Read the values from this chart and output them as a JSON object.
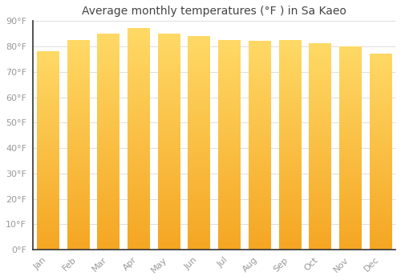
{
  "title": "Average monthly temperatures (°F ) in Sa Kaeo",
  "months": [
    "Jan",
    "Feb",
    "Mar",
    "Apr",
    "May",
    "Jun",
    "Jul",
    "Aug",
    "Sep",
    "Oct",
    "Nov",
    "Dec"
  ],
  "values": [
    78,
    82.5,
    85,
    87,
    85,
    84,
    82.5,
    82,
    82.5,
    81,
    80,
    77
  ],
  "bar_color_bottom": "#F5A623",
  "bar_color_top": "#FFD966",
  "ylim": [
    0,
    90
  ],
  "yticks": [
    0,
    10,
    20,
    30,
    40,
    50,
    60,
    70,
    80,
    90
  ],
  "ytick_labels": [
    "0°F",
    "10°F",
    "20°F",
    "30°F",
    "40°F",
    "50°F",
    "60°F",
    "70°F",
    "80°F",
    "90°F"
  ],
  "background_color": "#FFFFFF",
  "grid_color": "#DDDDDD",
  "title_fontsize": 10,
  "tick_fontsize": 8,
  "tick_color": "#999999",
  "spine_color": "#333333"
}
